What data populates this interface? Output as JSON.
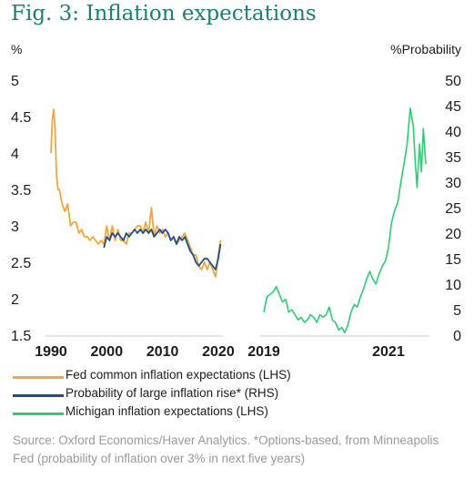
{
  "chart_data": {
    "type": "line",
    "title": "Fig. 3: Inflation expectations",
    "left_panel": {
      "ylabel_left": "%",
      "ylim": [
        1.5,
        5
      ],
      "yticks": [
        "5",
        "4.5",
        "4",
        "3.5",
        "3",
        "2.5",
        "2",
        "1.5"
      ],
      "xlim": [
        1990,
        2020.5
      ],
      "xticks": [
        "1990",
        "2000",
        "2010",
        "2020"
      ],
      "series": [
        {
          "name": "Fed common inflation expectations (LHS)",
          "color": "#f4a53c",
          "x": [
            1990.0,
            1990.25,
            1990.5,
            1990.75,
            1991.0,
            1991.25,
            1991.5,
            1991.75,
            1992.0,
            1992.5,
            1993.0,
            1993.5,
            1994.0,
            1994.5,
            1995.0,
            1995.5,
            1996.0,
            1996.5,
            1997.0,
            1997.5,
            1998.0,
            1998.5,
            1999.0,
            1999.5,
            2000.0,
            2000.5,
            2001.0,
            2001.5,
            2002.0,
            2002.5,
            2003.0,
            2003.5,
            2004.0,
            2004.5,
            2005.0,
            2005.5,
            2006.0,
            2006.5,
            2007.0,
            2007.5,
            2008.0,
            2008.5,
            2009.0,
            2009.5,
            2010.0,
            2010.5,
            2011.0,
            2011.5,
            2012.0,
            2012.5,
            2013.0,
            2013.5,
            2014.0,
            2014.5,
            2015.0,
            2015.5,
            2016.0,
            2016.5,
            2017.0,
            2017.5,
            2018.0,
            2018.5,
            2019.0,
            2019.5,
            2020.0,
            2020.4
          ],
          "values": [
            4.0,
            4.45,
            4.6,
            4.3,
            3.7,
            3.5,
            3.5,
            3.4,
            3.3,
            3.2,
            3.3,
            3.0,
            3.05,
            3.05,
            2.9,
            2.95,
            2.85,
            2.85,
            2.8,
            2.85,
            2.8,
            2.75,
            2.8,
            2.75,
            3.0,
            2.8,
            3.0,
            2.8,
            2.95,
            2.8,
            2.8,
            2.75,
            2.9,
            2.9,
            2.95,
            3.0,
            3.0,
            2.9,
            3.05,
            2.9,
            3.25,
            2.85,
            3.0,
            2.9,
            2.95,
            2.85,
            2.9,
            2.8,
            2.85,
            2.75,
            2.8,
            2.85,
            2.9,
            2.8,
            2.7,
            2.6,
            2.6,
            2.45,
            2.4,
            2.5,
            2.4,
            2.5,
            2.4,
            2.3,
            2.6,
            2.8
          ]
        },
        {
          "name": "Probability of large inflation rise* (RHS)",
          "color": "#1f4e8c",
          "x": [
            1999.5,
            2000.0,
            2000.5,
            2001.0,
            2001.5,
            2002.0,
            2002.5,
            2003.0,
            2003.5,
            2004.0,
            2004.5,
            2005.0,
            2005.5,
            2006.0,
            2006.5,
            2007.0,
            2007.5,
            2008.0,
            2008.5,
            2009.0,
            2009.5,
            2010.0,
            2010.5,
            2011.0,
            2011.5,
            2012.0,
            2012.5,
            2013.0,
            2013.5,
            2014.0,
            2014.5,
            2015.0,
            2015.5,
            2016.0,
            2016.5,
            2017.0,
            2017.5,
            2018.0,
            2018.5,
            2019.0,
            2019.5,
            2020.0,
            2020.4
          ],
          "values": [
            2.7,
            2.85,
            2.8,
            2.9,
            2.85,
            2.9,
            2.85,
            2.8,
            2.9,
            2.85,
            2.9,
            2.95,
            2.9,
            2.95,
            2.9,
            2.95,
            2.9,
            2.95,
            2.85,
            2.9,
            2.95,
            2.9,
            2.95,
            2.9,
            2.8,
            2.85,
            2.75,
            2.85,
            2.8,
            2.85,
            2.75,
            2.65,
            2.6,
            2.5,
            2.45,
            2.5,
            2.55,
            2.55,
            2.5,
            2.45,
            2.4,
            2.55,
            2.75
          ]
        }
      ]
    },
    "right_panel": {
      "ylabel_right": "%Probability",
      "ylim": [
        0,
        50
      ],
      "yticks": [
        "50",
        "45",
        "40",
        "35",
        "30",
        "25",
        "20",
        "15",
        "10",
        "5",
        "0"
      ],
      "xlim": [
        2019.0,
        2021.6
      ],
      "xticks": [
        "2019",
        "2021"
      ],
      "series": [
        {
          "name": "Michigan inflation expectations (LHS)",
          "color": "#2ecc71",
          "x": [
            2019.0,
            2019.05,
            2019.1,
            2019.15,
            2019.2,
            2019.25,
            2019.3,
            2019.35,
            2019.4,
            2019.45,
            2019.5,
            2019.55,
            2019.6,
            2019.65,
            2019.7,
            2019.75,
            2019.8,
            2019.85,
            2019.9,
            2019.95,
            2020.0,
            2020.05,
            2020.1,
            2020.15,
            2020.2,
            2020.25,
            2020.3,
            2020.35,
            2020.4,
            2020.45,
            2020.5,
            2020.55,
            2020.6,
            2020.65,
            2020.7,
            2020.75,
            2020.8,
            2020.85,
            2020.9,
            2020.95,
            2021.0,
            2021.05,
            2021.1,
            2021.15,
            2021.2,
            2021.25,
            2021.3,
            2021.35,
            2021.4,
            2021.43,
            2021.46,
            2021.5,
            2021.53,
            2021.56,
            2021.6
          ],
          "values": [
            4.5,
            7.5,
            8.0,
            8.5,
            9.5,
            8.0,
            6.5,
            7.0,
            4.5,
            5.0,
            4.0,
            3.0,
            3.5,
            2.5,
            3.0,
            4.0,
            3.5,
            2.5,
            4.0,
            3.5,
            4.0,
            5.5,
            3.0,
            2.5,
            1.0,
            1.5,
            0.5,
            2.0,
            4.5,
            6.0,
            5.5,
            7.5,
            9.0,
            11.0,
            12.5,
            11.0,
            10.0,
            12.0,
            13.5,
            14.5,
            17.0,
            22.0,
            24.5,
            26.0,
            30.0,
            33.5,
            37.5,
            44.5,
            41.0,
            34.0,
            29.0,
            37.5,
            32.0,
            40.5,
            33.5
          ]
        }
      ]
    },
    "legend": [
      {
        "label": "Fed common inflation expectations (LHS)",
        "color": "#f4a53c"
      },
      {
        "label": "Probability of large inflation rise* (RHS)",
        "color": "#1f4e8c"
      },
      {
        "label": "Michigan inflation expectations (LHS)",
        "color": "#2ecc71"
      }
    ],
    "source": "Source: Oxford Economics/Haver Analytics. *Options-based, from Minneapolis Fed (probability of inflation over 3% in next five years)"
  }
}
